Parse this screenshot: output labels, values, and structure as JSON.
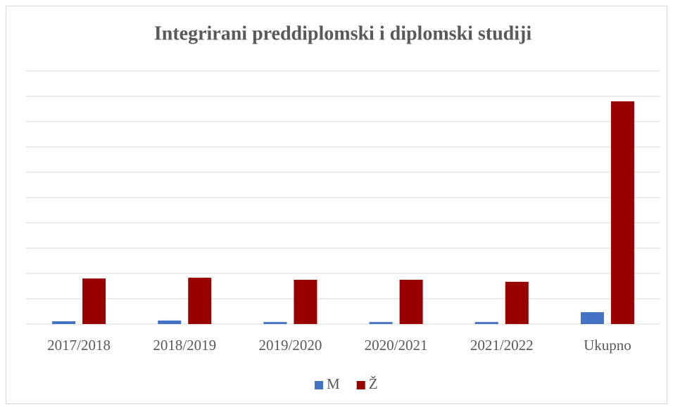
{
  "chart_data": {
    "type": "bar",
    "title": "Integrirani preddiplomski i diplomski studiji",
    "categories": [
      "2017/2018",
      "2018/2019",
      "2019/2020",
      "2020/2021",
      "2021/2022",
      "Ukupno"
    ],
    "series": [
      {
        "name": "M",
        "color": "#4472c4",
        "values": [
          0.11,
          0.14,
          0.08,
          0.08,
          0.08,
          0.47
        ]
      },
      {
        "name": "Ž",
        "color": "#990000",
        "values": [
          1.8,
          1.83,
          1.75,
          1.75,
          1.67,
          8.8
        ]
      }
    ],
    "ylim": [
      0,
      10
    ],
    "yticks": [
      0,
      1,
      2,
      3,
      4,
      5,
      6,
      7,
      8,
      9,
      10
    ],
    "grid": true,
    "legend": "bottom"
  }
}
